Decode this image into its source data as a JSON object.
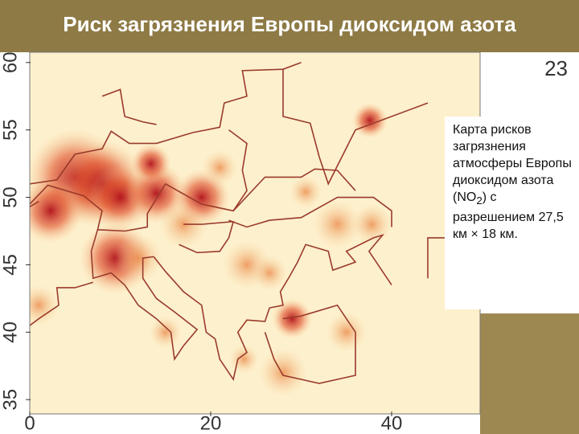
{
  "header": {
    "title": "Риск загрязнения Европы диоксидом азота"
  },
  "slide_number": "23",
  "caption": {
    "text_before": "Карта рисков загрязнения атмосферы Европы диоксидом азота (NO",
    "subscript": "2",
    "text_after": ") с разрешением 27,5 км × 18 км."
  },
  "map": {
    "xlim": [
      0,
      50
    ],
    "ylim": [
      34,
      61
    ],
    "xticks": [
      0,
      20,
      40
    ],
    "yticks": [
      35,
      40,
      45,
      50,
      55,
      60
    ]
  }
}
